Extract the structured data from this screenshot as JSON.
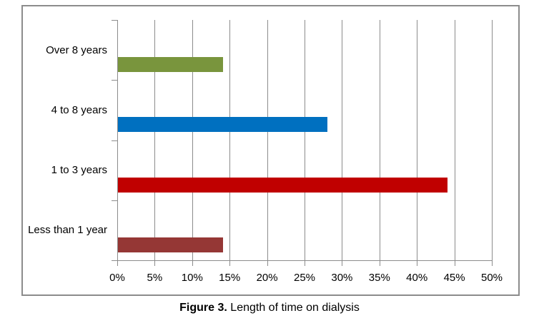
{
  "figure": {
    "caption_bold": "Figure 3.",
    "caption_rest": " Length of time on dialysis"
  },
  "chart_data": {
    "type": "bar",
    "orientation": "horizontal",
    "title": "",
    "xlabel": "",
    "ylabel": "",
    "legend": "none",
    "grid": "vertical",
    "categories": [
      "Over 8 years",
      "4 to 8 years",
      "1 to 3 years",
      "Less than 1 year"
    ],
    "values": [
      14,
      28,
      44,
      14
    ],
    "unit": "%",
    "bar_colors": [
      "#79953D",
      "#0070C0",
      "#C00000",
      "#953735"
    ],
    "x_axis": {
      "min": 0,
      "max": 50,
      "tick_values": [
        0,
        5,
        10,
        15,
        20,
        25,
        30,
        35,
        40,
        45,
        50
      ],
      "tick_labels": [
        "0%",
        "5%",
        "10%",
        "15%",
        "20%",
        "25%",
        "30%",
        "35%",
        "40%",
        "45%",
        "50%"
      ]
    }
  },
  "colors": {
    "grid": "#8C8C8C",
    "frame": "#8C8C8C",
    "text": "#000000"
  }
}
